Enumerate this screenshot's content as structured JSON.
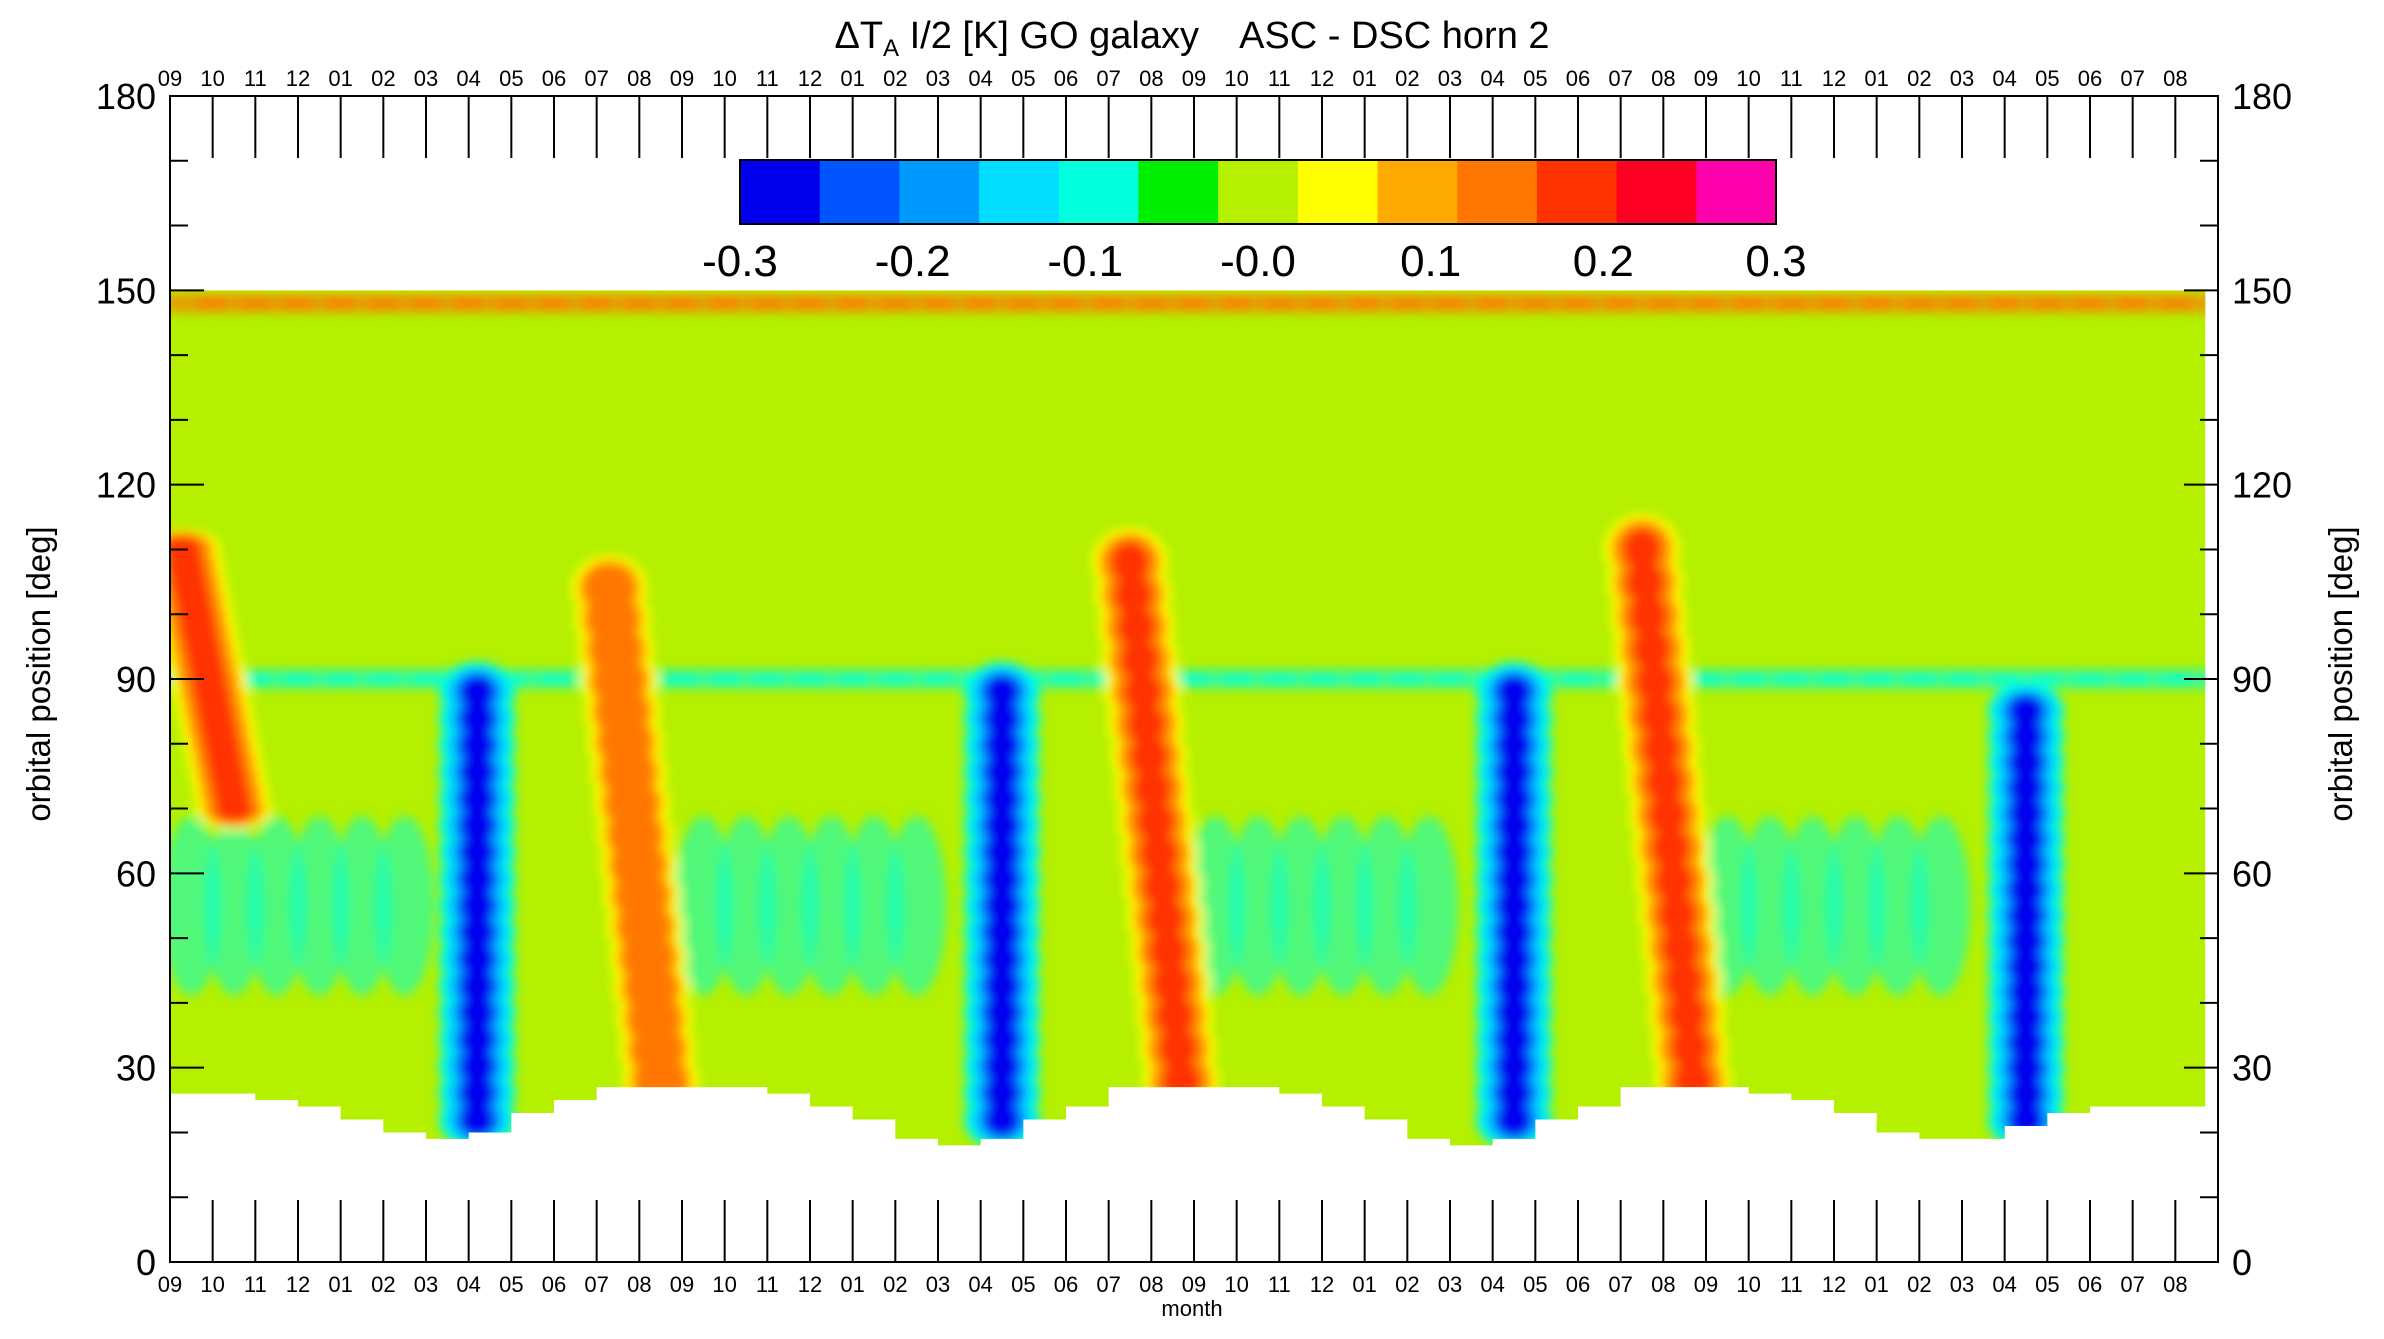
{
  "chart_data": {
    "type": "heatmap",
    "title_prefix": "ΔT",
    "title_sub": "A",
    "title_suffix": " I/2 [K] GO galaxy    ASC - DSC horn 2",
    "xlabel": "month",
    "ylabel_left": "orbital position [deg]",
    "ylabel_right": "orbital position [deg]",
    "ylim": [
      0,
      180
    ],
    "y_ticks": [
      0,
      30,
      60,
      90,
      120,
      150,
      180
    ],
    "x_ticks": [
      "09",
      "10",
      "11",
      "12",
      "01",
      "02",
      "03",
      "04",
      "05",
      "06",
      "07",
      "08",
      "09",
      "10",
      "11",
      "12",
      "01",
      "02",
      "03",
      "04",
      "05",
      "06",
      "07",
      "08",
      "09",
      "10",
      "11",
      "12",
      "01",
      "02",
      "03",
      "04",
      "05",
      "06",
      "07",
      "08",
      "09",
      "10",
      "11",
      "12",
      "01",
      "02",
      "03",
      "04",
      "05",
      "06",
      "07",
      "08"
    ],
    "colorbar": {
      "colors": [
        "#0000ee",
        "#0055ff",
        "#0099ff",
        "#00ddff",
        "#00ffdd",
        "#00ee00",
        "#b4f000",
        "#ffff00",
        "#ffaa00",
        "#ff7700",
        "#ff3300",
        "#ff0022",
        "#ff00aa"
      ],
      "tick_values": [
        -0.3,
        -0.2,
        -0.1,
        -0.0,
        0.1,
        0.2,
        0.3
      ],
      "tick_labels": [
        "-0.3",
        "-0.2",
        "-0.1",
        "-0.0",
        "0.1",
        "0.2",
        "0.3"
      ]
    },
    "grid": false,
    "legend": "colorbar top-center inside plot",
    "y_top_of_data": 150,
    "lower_edge_deg": [
      26,
      26,
      25,
      24,
      22,
      20,
      19,
      20,
      23,
      25,
      27,
      27,
      27,
      27,
      26,
      24,
      22,
      19,
      18,
      19,
      22,
      24,
      27,
      27,
      27,
      27,
      26,
      24,
      22,
      19,
      18,
      19,
      22,
      24,
      27,
      27,
      27,
      26,
      25,
      23,
      20,
      19,
      19,
      21,
      23,
      24,
      24,
      24
    ],
    "features": [
      {
        "kind": "minimum",
        "month_index": 7.2,
        "lat_lo": 22,
        "lat_hi": 88,
        "level": -0.28
      },
      {
        "kind": "minimum",
        "month_index": 19.5,
        "lat_lo": 22,
        "lat_hi": 88,
        "level": -0.28
      },
      {
        "kind": "minimum",
        "month_index": 31.5,
        "lat_lo": 22,
        "lat_hi": 88,
        "level": -0.28
      },
      {
        "kind": "minimum",
        "month_index": 43.5,
        "lat_lo": 22,
        "lat_hi": 85,
        "level": -0.28
      },
      {
        "kind": "maximum",
        "month_index": 10.3,
        "lat_lo": 28,
        "lat_hi": 104,
        "level": 0.15
      },
      {
        "kind": "maximum",
        "month_index": 22.5,
        "lat_lo": 28,
        "lat_hi": 108,
        "level": 0.18
      },
      {
        "kind": "maximum",
        "month_index": 34.5,
        "lat_lo": 28,
        "lat_hi": 110,
        "level": 0.2
      },
      {
        "kind": "maximum",
        "month_index": 0.3,
        "lat_lo": 70,
        "lat_hi": 110,
        "level": 0.17
      },
      {
        "kind": "band_negative",
        "lat": 90,
        "level": -0.09
      },
      {
        "kind": "band_positive",
        "lat": 148,
        "level": 0.12
      }
    ]
  }
}
